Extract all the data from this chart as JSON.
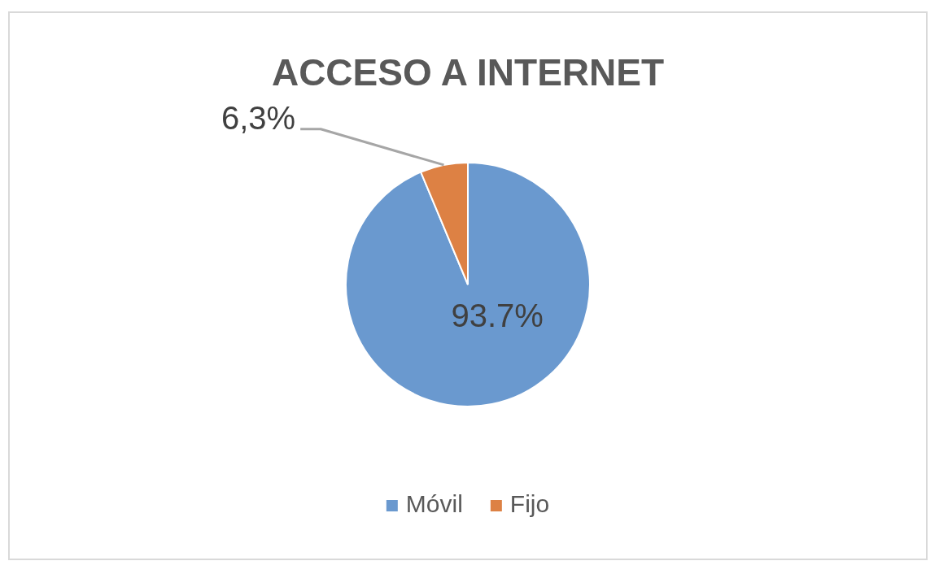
{
  "chart_data": {
    "type": "pie",
    "title": "ACCESO A INTERNET",
    "categories": [
      "Móvil",
      "Fijo"
    ],
    "values": [
      93.7,
      6.3
    ],
    "colors": [
      "#6a99cf",
      "#dd8144"
    ],
    "value_labels": [
      "93.7%",
      "6,3%"
    ],
    "legend": "bottom"
  }
}
